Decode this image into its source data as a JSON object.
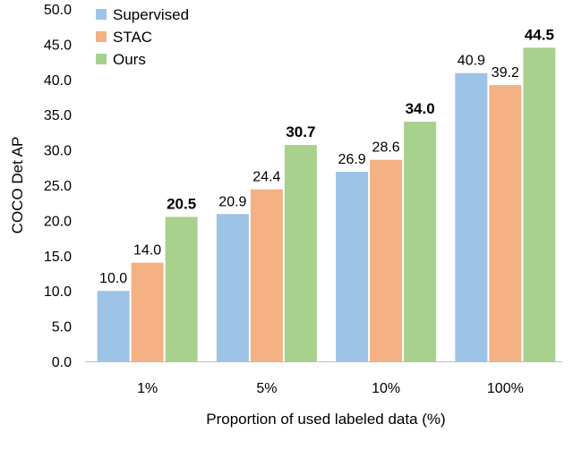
{
  "chart_data": {
    "type": "bar",
    "title": "",
    "xlabel": "Proportion of used labeled data (%)",
    "ylabel": "COCO Det AP",
    "ylim": [
      0,
      50
    ],
    "yticks": [
      "0.0",
      "5.0",
      "10.0",
      "15.0",
      "20.0",
      "25.0",
      "30.0",
      "35.0",
      "40.0",
      "45.0",
      "50.0"
    ],
    "grid": false,
    "legend_position": "top-left",
    "categories": [
      "1%",
      "5%",
      "10%",
      "100%"
    ],
    "series": [
      {
        "name": "Supervised",
        "color": "#9dc3e6",
        "values": [
          10.0,
          20.9,
          26.9,
          40.9
        ],
        "labels": [
          "10.0",
          "20.9",
          "26.9",
          "40.9"
        ],
        "bold_labels": false
      },
      {
        "name": "STAC",
        "color": "#f4b183",
        "values": [
          14.0,
          24.4,
          28.6,
          39.2
        ],
        "labels": [
          "14.0",
          "24.4",
          "28.6",
          "39.2"
        ],
        "bold_labels": false
      },
      {
        "name": "Ours",
        "color": "#a9d18e",
        "values": [
          20.5,
          30.7,
          34.0,
          44.5
        ],
        "labels": [
          "20.5",
          "30.7",
          "34.0",
          "44.5"
        ],
        "bold_labels": true
      }
    ]
  }
}
